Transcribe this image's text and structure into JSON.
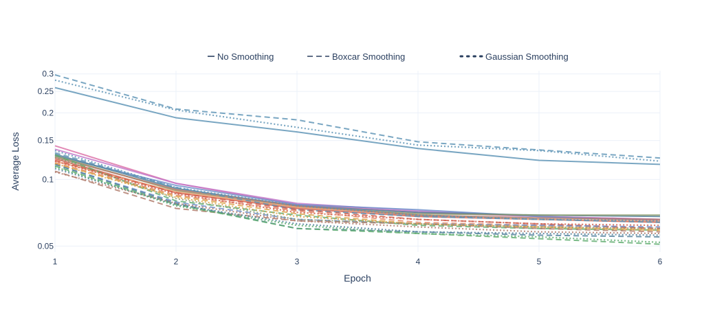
{
  "chart_data": {
    "type": "line",
    "title": "",
    "xlabel": "Epoch",
    "ylabel": "Average Loss",
    "x": [
      1,
      2,
      3,
      4,
      5,
      6
    ],
    "x_ticks": [
      "1",
      "2",
      "3",
      "4",
      "5",
      "6"
    ],
    "xlim": [
      1,
      6
    ],
    "y_scale": "log",
    "ylim": [
      0.047,
      0.31
    ],
    "y_ticks": [
      {
        "value": 0.05,
        "label": "0.05"
      },
      {
        "value": 0.1,
        "label": "0.1"
      },
      {
        "value": 0.15,
        "label": "0.15"
      },
      {
        "value": 0.2,
        "label": "0.2"
      },
      {
        "value": 0.25,
        "label": "0.25"
      },
      {
        "value": 0.3,
        "label": "0.3"
      }
    ],
    "grid": true,
    "legend_position": "top",
    "legend": [
      {
        "label": "No Smoothing",
        "dash": "solid"
      },
      {
        "label": "Boxcar Smoothing",
        "dash": "dash"
      },
      {
        "label": "Gaussian Smoothing",
        "dash": "dot"
      }
    ],
    "series": [
      {
        "color": "#5b93b4",
        "dash": "solid",
        "values": [
          0.26,
          0.19,
          0.164,
          0.138,
          0.122,
          0.117
        ]
      },
      {
        "color": "#5b93b4",
        "dash": "dash",
        "values": [
          0.297,
          0.208,
          0.186,
          0.148,
          0.136,
          0.125
        ]
      },
      {
        "color": "#5b93b4",
        "dash": "dot",
        "values": [
          0.281,
          0.206,
          0.172,
          0.143,
          0.135,
          0.121
        ]
      },
      {
        "color": "#dc6fa6",
        "dash": "solid",
        "values": [
          0.142,
          0.096,
          0.077,
          0.071,
          0.068,
          0.066
        ]
      },
      {
        "color": "#c177c9",
        "dash": "solid",
        "values": [
          0.137,
          0.096,
          0.078,
          0.072,
          0.068,
          0.066
        ]
      },
      {
        "color": "#6e8fca",
        "dash": "solid",
        "values": [
          0.128,
          0.094,
          0.077,
          0.073,
          0.068,
          0.065
        ]
      },
      {
        "color": "#4f7f9b",
        "dash": "solid",
        "values": [
          0.13,
          0.091,
          0.076,
          0.071,
          0.069,
          0.068
        ]
      },
      {
        "color": "#8a9a6a",
        "dash": "solid",
        "values": [
          0.128,
          0.089,
          0.075,
          0.07,
          0.069,
          0.069
        ]
      },
      {
        "color": "#d05d4a",
        "dash": "solid",
        "values": [
          0.124,
          0.087,
          0.074,
          0.068,
          0.066,
          0.064
        ]
      },
      {
        "color": "#f0a37a",
        "dash": "solid",
        "values": [
          0.121,
          0.088,
          0.075,
          0.069,
          0.066,
          0.065
        ]
      },
      {
        "color": "#b07a6a",
        "dash": "solid",
        "values": [
          0.126,
          0.09,
          0.076,
          0.069,
          0.067,
          0.066
        ]
      },
      {
        "color": "#5b93b4",
        "dash": "dash",
        "values": [
          0.132,
          0.092,
          0.073,
          0.068,
          0.066,
          0.064
        ]
      },
      {
        "color": "#5bab6d",
        "dash": "dash",
        "values": [
          0.129,
          0.08,
          0.069,
          0.062,
          0.06,
          0.059
        ]
      },
      {
        "color": "#e5896a",
        "dash": "dash",
        "values": [
          0.119,
          0.085,
          0.072,
          0.064,
          0.062,
          0.06
        ]
      },
      {
        "color": "#d05d4a",
        "dash": "dash",
        "values": [
          0.122,
          0.087,
          0.073,
          0.066,
          0.063,
          0.06
        ]
      },
      {
        "color": "#dca24a",
        "dash": "dash",
        "values": [
          0.118,
          0.084,
          0.07,
          0.063,
          0.061,
          0.059
        ]
      },
      {
        "color": "#6e8fca",
        "dash": "dash",
        "values": [
          0.117,
          0.079,
          0.066,
          0.063,
          0.062,
          0.061
        ]
      },
      {
        "color": "#b07a6a",
        "dash": "dash",
        "values": [
          0.109,
          0.074,
          0.065,
          0.063,
          0.06,
          0.058
        ]
      },
      {
        "color": "#4f7f9b",
        "dash": "dash",
        "values": [
          0.117,
          0.078,
          0.06,
          0.058,
          0.056,
          0.055
        ]
      },
      {
        "color": "#5bab6d",
        "dash": "dash",
        "values": [
          0.115,
          0.077,
          0.06,
          0.057,
          0.054,
          0.051
        ]
      },
      {
        "color": "#5b93b4",
        "dash": "dot",
        "values": [
          0.135,
          0.092,
          0.076,
          0.069,
          0.066,
          0.065
        ]
      },
      {
        "color": "#8a9a6a",
        "dash": "dot",
        "values": [
          0.126,
          0.082,
          0.066,
          0.063,
          0.061,
          0.06
        ]
      },
      {
        "color": "#d05d4a",
        "dash": "dot",
        "values": [
          0.121,
          0.086,
          0.071,
          0.066,
          0.063,
          0.062
        ]
      },
      {
        "color": "#dca24a",
        "dash": "dot",
        "values": [
          0.118,
          0.083,
          0.068,
          0.063,
          0.061,
          0.059
        ]
      },
      {
        "color": "#b07a6a",
        "dash": "dot",
        "values": [
          0.108,
          0.078,
          0.065,
          0.061,
          0.058,
          0.057
        ]
      },
      {
        "color": "#4f7f9b",
        "dash": "dot",
        "values": [
          0.112,
          0.077,
          0.063,
          0.058,
          0.057,
          0.056
        ]
      },
      {
        "color": "#5bab6d",
        "dash": "dot",
        "values": [
          0.114,
          0.076,
          0.062,
          0.057,
          0.055,
          0.052
        ]
      }
    ]
  }
}
